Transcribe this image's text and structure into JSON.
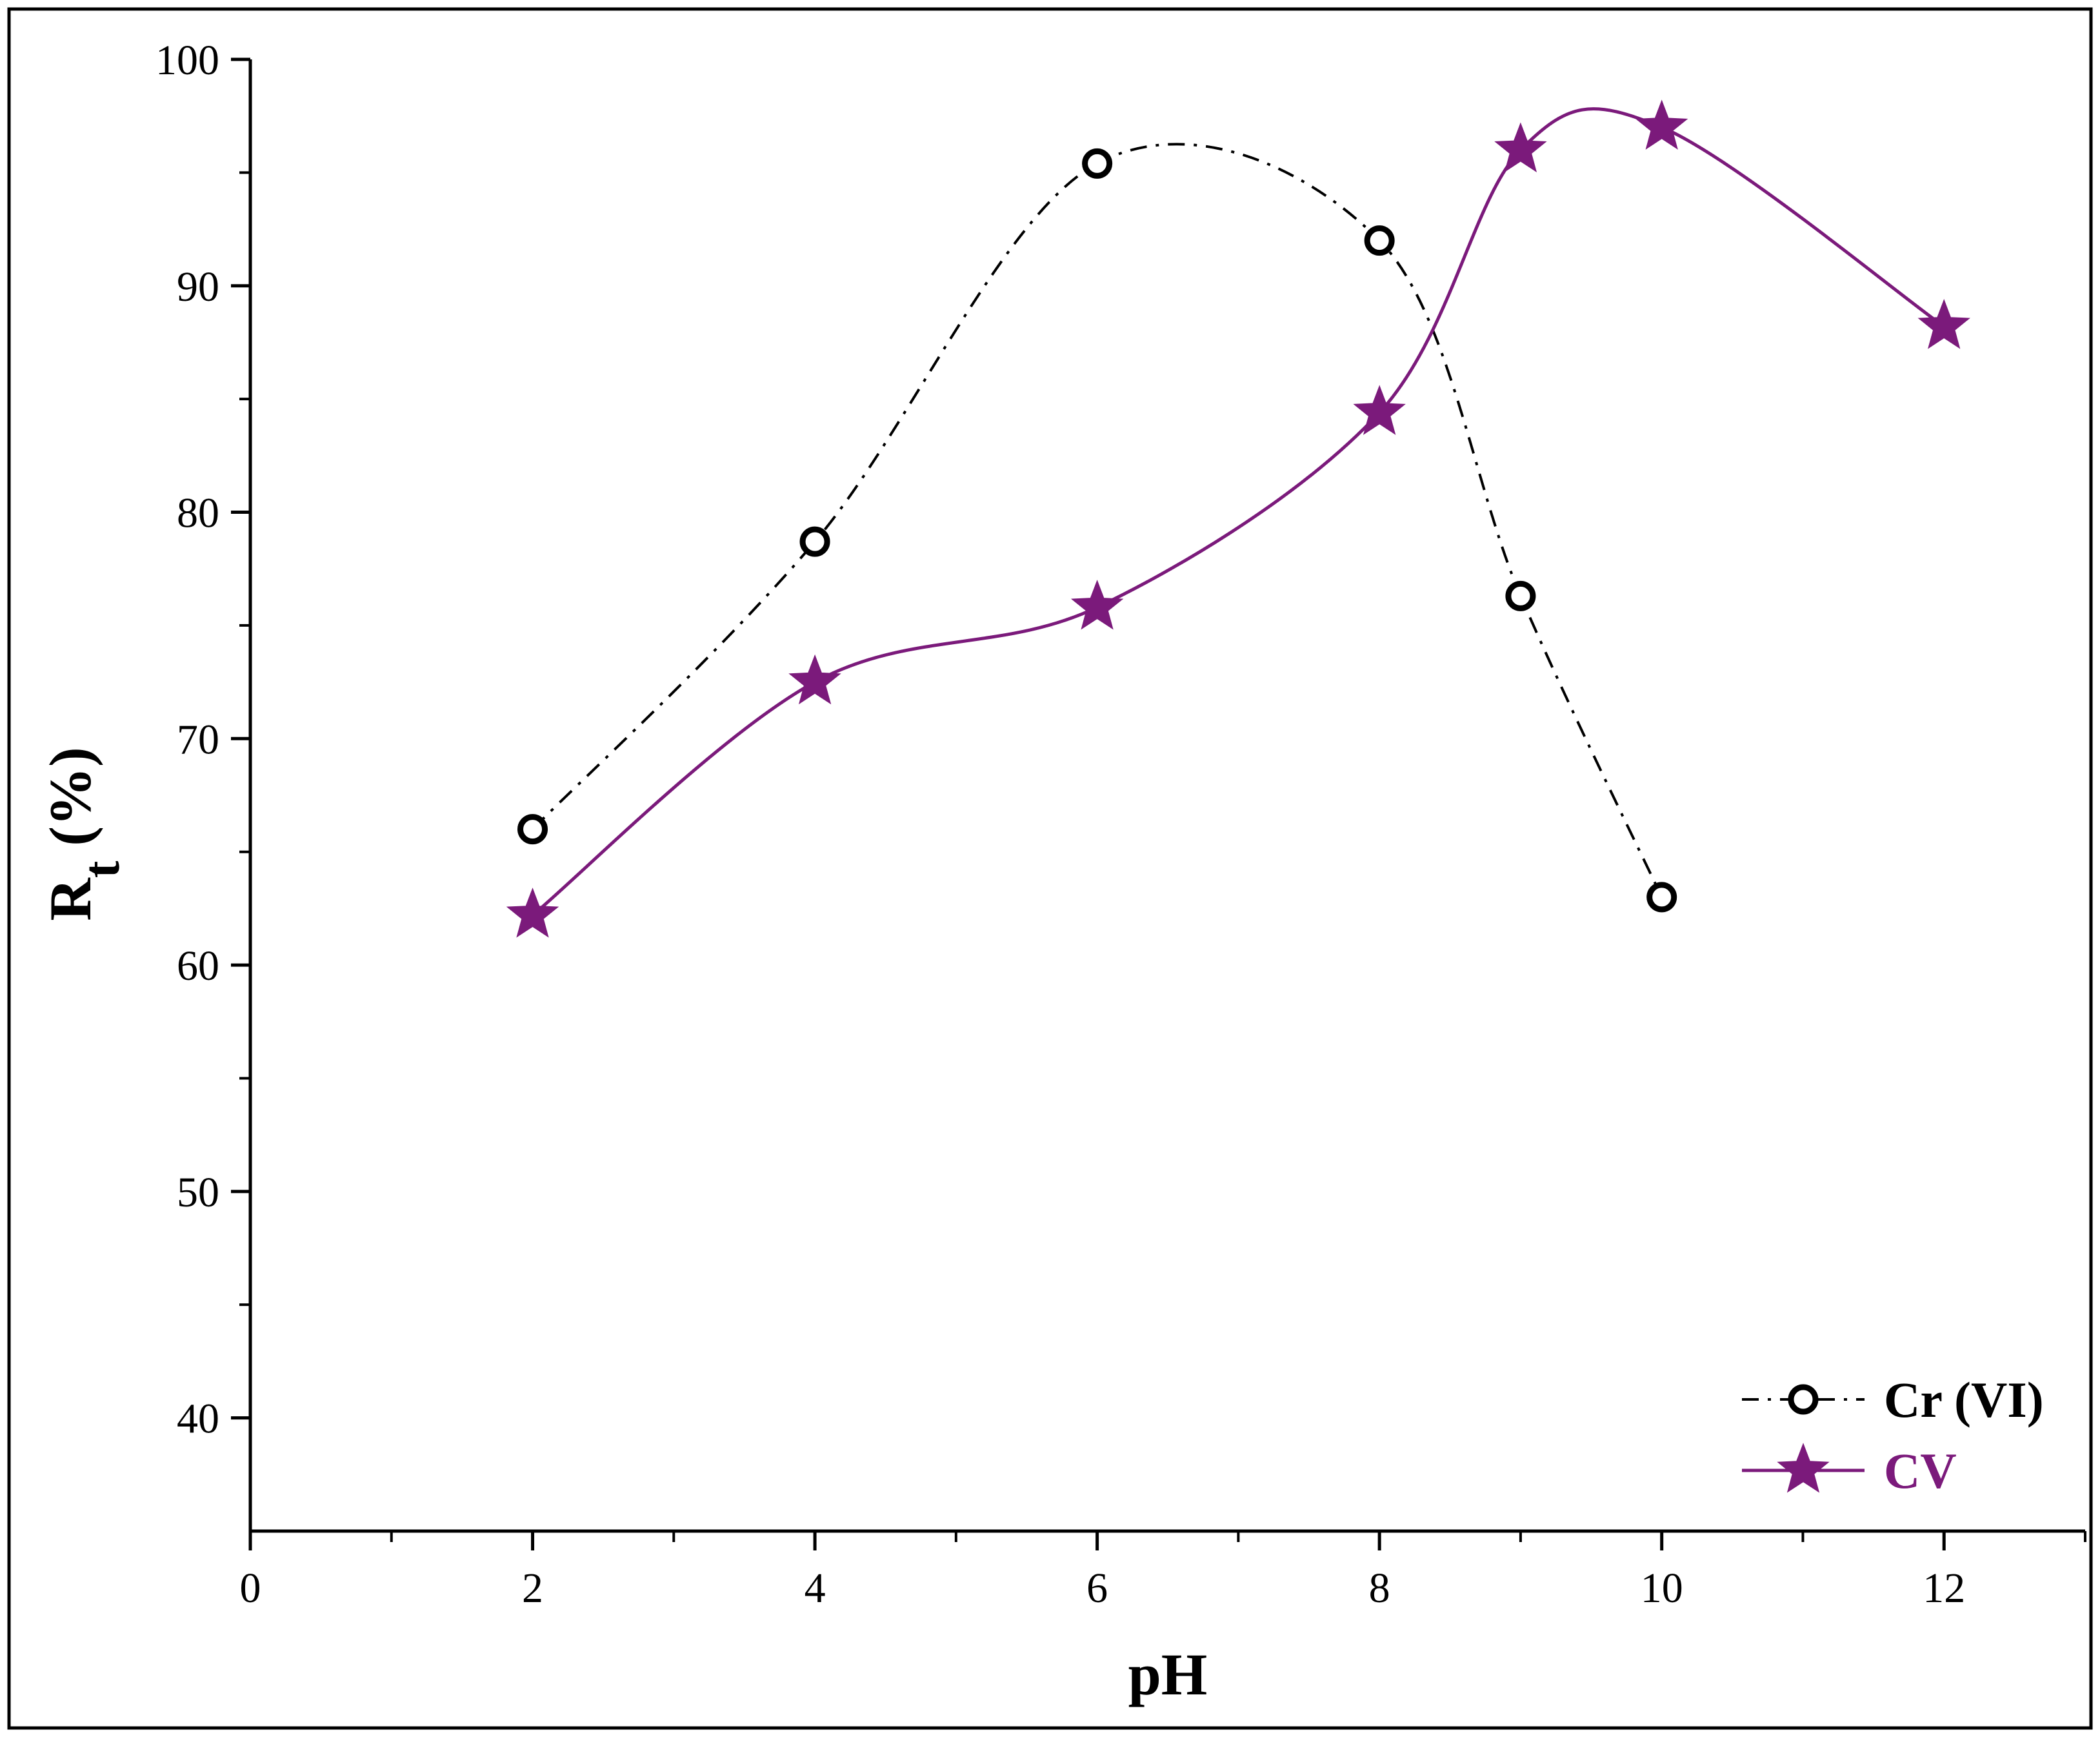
{
  "chart_data": {
    "type": "line",
    "xlabel": "pH",
    "ylabel": {
      "main": "R",
      "subscript": "t",
      "suffix": " (%)"
    },
    "xlim": [
      0,
      13
    ],
    "ylim": [
      35,
      100
    ],
    "x_ticks": [
      "0",
      "2",
      "4",
      "6",
      "8",
      "10",
      "12"
    ],
    "x_tick_values": [
      0,
      2,
      4,
      6,
      8,
      10,
      12
    ],
    "x_minor_tick_values": [
      1,
      3,
      5,
      7,
      9,
      11,
      13
    ],
    "y_ticks": [
      "40",
      "50",
      "60",
      "70",
      "80",
      "90",
      "100"
    ],
    "y_tick_values": [
      40,
      50,
      60,
      70,
      80,
      90,
      100
    ],
    "y_minor_tick_values": [
      45,
      55,
      65,
      75,
      85,
      95
    ],
    "grid": false,
    "legend_position": "bottom-right",
    "series": [
      {
        "name": "Cr (VI)",
        "marker": "open-circle",
        "line_style": "dash-dot",
        "color": "#000000",
        "x": [
          2,
          4,
          6,
          8,
          9,
          10
        ],
        "y": [
          66.0,
          78.7,
          95.4,
          92.0,
          76.3,
          63.0
        ]
      },
      {
        "name": "CV",
        "marker": "star",
        "line_style": "solid",
        "color": "#7b1a7b",
        "x": [
          2,
          4,
          6,
          8,
          9,
          10,
          12
        ],
        "y": [
          62.2,
          72.5,
          75.8,
          84.4,
          96.0,
          97.0,
          88.2
        ]
      }
    ]
  }
}
